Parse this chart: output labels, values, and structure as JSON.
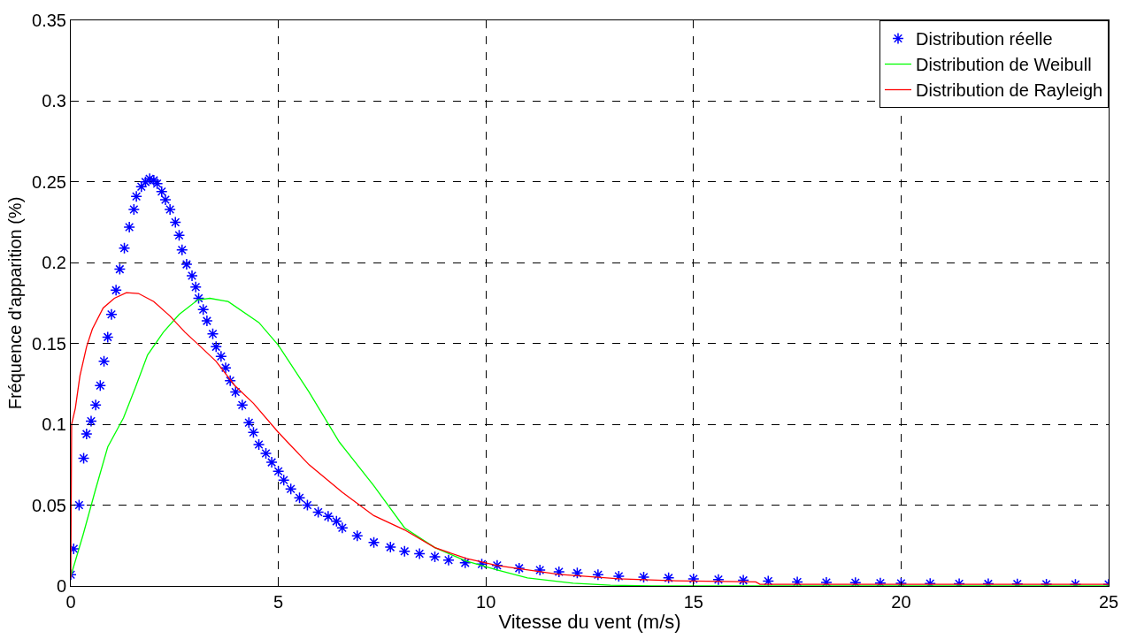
{
  "chart_data": {
    "type": "line",
    "xlabel": "Vitesse du vent (m/s)",
    "ylabel": "Fréquence d'apparition (%)",
    "xlim": [
      0,
      25
    ],
    "ylim": [
      0,
      0.35
    ],
    "xticks": [
      0,
      5,
      10,
      15,
      20,
      25
    ],
    "yticks": [
      0,
      0.05,
      0.1,
      0.15,
      0.2,
      0.25,
      0.3,
      0.35
    ],
    "grid": true,
    "legend": "top right",
    "series": [
      {
        "name": "Distribution réelle",
        "type": "scatter",
        "marker": "cross",
        "color": "#0000ff",
        "x": [
          0,
          0.07,
          0.2,
          0.31,
          0.38,
          0.49,
          0.6,
          0.71,
          0.8,
          0.89,
          0.98,
          1.09,
          1.18,
          1.29,
          1.41,
          1.52,
          1.58,
          1.7,
          1.8,
          1.9,
          2.0,
          2.08,
          2.19,
          2.28,
          2.39,
          2.52,
          2.61,
          2.68,
          2.79,
          2.92,
          3.01,
          3.08,
          3.19,
          3.28,
          3.42,
          3.5,
          3.62,
          3.73,
          3.84,
          3.97,
          4.13,
          4.29,
          4.4,
          4.53,
          4.7,
          4.84,
          5.0,
          5.13,
          5.3,
          5.51,
          5.7,
          5.96,
          6.2,
          6.4,
          6.54,
          6.9,
          7.3,
          7.7,
          8.04,
          8.4,
          8.77,
          9.1,
          9.5,
          9.9,
          10.27,
          10.8,
          11.3,
          11.76,
          12.2,
          12.7,
          13.2,
          13.8,
          14.4,
          15.0,
          15.6,
          16.2,
          16.8,
          17.5,
          18.2,
          18.9,
          19.5,
          20.0,
          20.7,
          21.4,
          22.1,
          22.8,
          23.5,
          24.2,
          25.0
        ],
        "values": [
          0.007,
          0.023,
          0.05,
          0.079,
          0.094,
          0.102,
          0.112,
          0.124,
          0.139,
          0.154,
          0.168,
          0.183,
          0.196,
          0.209,
          0.222,
          0.233,
          0.241,
          0.247,
          0.25,
          0.252,
          0.251,
          0.249,
          0.244,
          0.239,
          0.233,
          0.225,
          0.217,
          0.208,
          0.199,
          0.192,
          0.185,
          0.178,
          0.171,
          0.164,
          0.156,
          0.148,
          0.142,
          0.135,
          0.127,
          0.12,
          0.112,
          0.101,
          0.095,
          0.0875,
          0.082,
          0.0765,
          0.071,
          0.0655,
          0.06,
          0.0545,
          0.05,
          0.0457,
          0.043,
          0.04,
          0.036,
          0.031,
          0.027,
          0.024,
          0.0215,
          0.02,
          0.018,
          0.016,
          0.0143,
          0.0135,
          0.0127,
          0.011,
          0.0098,
          0.0088,
          0.008,
          0.007,
          0.006,
          0.0055,
          0.005,
          0.0044,
          0.004,
          0.0035,
          0.003,
          0.0025,
          0.0022,
          0.002,
          0.0018,
          0.0016,
          0.0015,
          0.0014,
          0.0013,
          0.0012,
          0.0011,
          0.001,
          0.001
        ]
      },
      {
        "name": "Distribution de Weibull",
        "line_style": "solid",
        "color": "#00ff00",
        "x": [
          0,
          0.3,
          0.6,
          0.89,
          1.27,
          1.56,
          1.85,
          2.23,
          2.61,
          3.06,
          3.35,
          3.79,
          4.53,
          5.0,
          5.74,
          6.47,
          7.3,
          8.04,
          8.77,
          9.53,
          10.27,
          11.0,
          12.1,
          13.0,
          14.0,
          25.0
        ],
        "values": [
          0.006,
          0.032,
          0.06,
          0.086,
          0.104,
          0.123,
          0.143,
          0.157,
          0.168,
          0.177,
          0.178,
          0.176,
          0.163,
          0.149,
          0.12,
          0.089,
          0.062,
          0.036,
          0.0237,
          0.0154,
          0.0099,
          0.005,
          0.0017,
          0.0005,
          0,
          0
        ]
      },
      {
        "name": "Distribution de Rayleigh",
        "line_style": "solid",
        "color": "#ff0000",
        "x": [
          0,
          0.02,
          0.11,
          0.22,
          0.38,
          0.52,
          0.78,
          1.05,
          1.34,
          1.63,
          2.0,
          2.39,
          2.75,
          3.13,
          3.5,
          3.95,
          4.4,
          5.0,
          5.74,
          6.54,
          7.3,
          8.04,
          8.77,
          9.53,
          10.27,
          11.76,
          13.2,
          14.4,
          16.5,
          16.6,
          25.0
        ],
        "values": [
          0.005,
          0.1,
          0.11,
          0.13,
          0.148,
          0.159,
          0.172,
          0.178,
          0.1815,
          0.181,
          0.176,
          0.167,
          0.157,
          0.148,
          0.139,
          0.124,
          0.113,
          0.095,
          0.075,
          0.058,
          0.0435,
          0.0347,
          0.0237,
          0.017,
          0.0127,
          0.0072,
          0.0044,
          0.0033,
          0.0025,
          0.001,
          0.001
        ]
      }
    ]
  }
}
